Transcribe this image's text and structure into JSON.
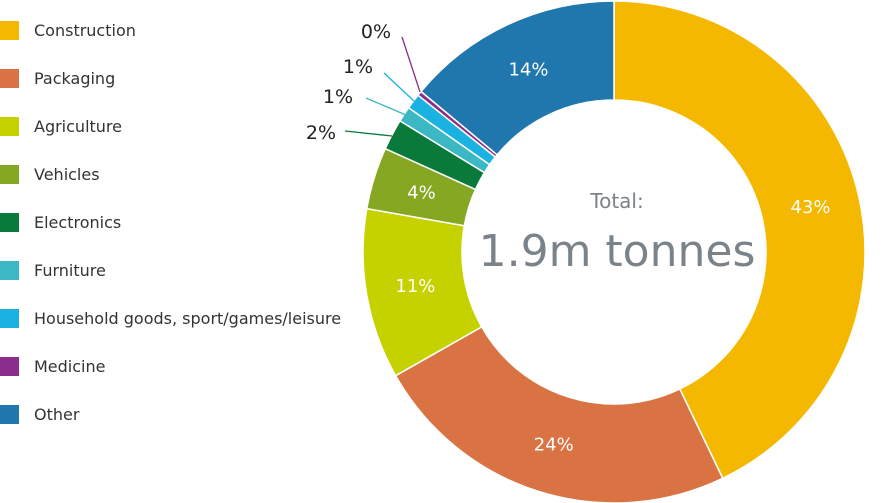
{
  "chart_data": {
    "type": "pie",
    "donut": true,
    "center_caption": "Total:",
    "center_total": "1.9m tonnes",
    "legend_placement": "left",
    "slices": [
      {
        "name": "Construction",
        "value": 43,
        "label": "43%",
        "color": "#f5b800",
        "label_outside": false
      },
      {
        "name": "Packaging",
        "value": 24,
        "label": "24%",
        "color": "#d97344",
        "label_outside": false
      },
      {
        "name": "Agriculture",
        "value": 11,
        "label": "11%",
        "color": "#c6d200",
        "label_outside": false
      },
      {
        "name": "Vehicles",
        "value": 4,
        "label": "4%",
        "color": "#86a722",
        "label_outside": false
      },
      {
        "name": "Electronics",
        "value": 2,
        "label": "2%",
        "color": "#0a7a3a",
        "label_outside": true
      },
      {
        "name": "Furniture",
        "value": 1,
        "label": "1%",
        "color": "#3bb8c3",
        "label_outside": true
      },
      {
        "name": "Household goods, sport/games/leisure",
        "value": 1,
        "label": "1%",
        "color": "#1ab2e0",
        "label_outside": true
      },
      {
        "name": "Medicine",
        "value": 0.3,
        "label": "0%",
        "color": "#8b2e8b",
        "label_outside": true
      },
      {
        "name": "Other",
        "value": 14,
        "label": "14%",
        "color": "#1f77ad",
        "label_outside": false
      }
    ]
  }
}
